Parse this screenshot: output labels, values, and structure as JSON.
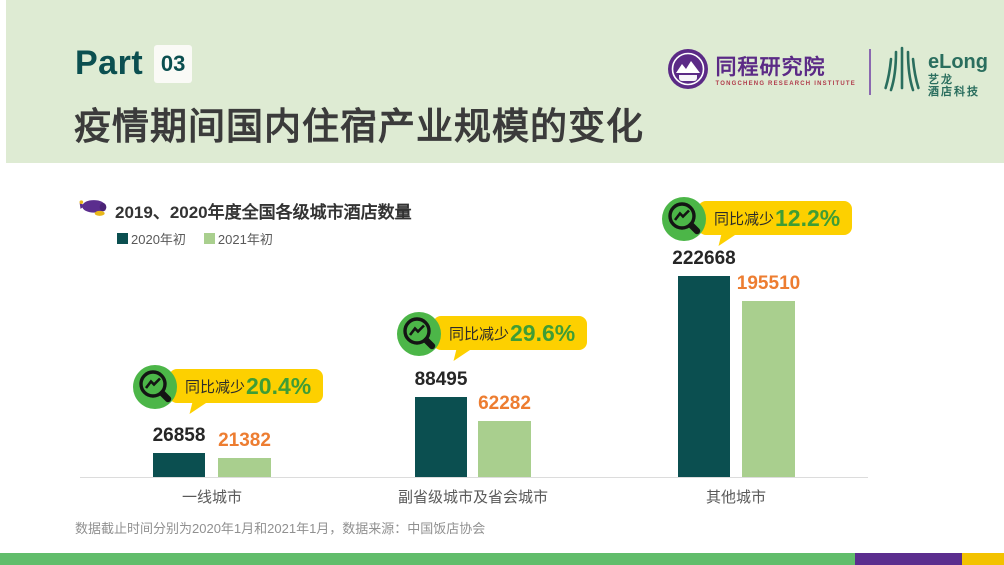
{
  "header": {
    "part_label": "Part",
    "part_number": "03",
    "title": "疫情期间国内住宿产业规模的变化",
    "logos": {
      "tongcheng_name": "同程研究院",
      "tongcheng_subtitle": "TONGCHENG RESEARCH INSTITUTE",
      "elong_name": "eLong",
      "elong_sub1": "艺龙",
      "elong_sub2": "酒店科技"
    }
  },
  "chart_data": {
    "type": "bar",
    "title": "2019、2020年度全国各级城市酒店数量",
    "categories": [
      "一线城市",
      "副省级城市及省会城市",
      "其他城市"
    ],
    "series": [
      {
        "name": "2020年初",
        "color": "#0b4f50",
        "label_color": "#262626",
        "values": [
          26858,
          88495,
          222668
        ]
      },
      {
        "name": "2021年初",
        "color": "#a9cf8e",
        "label_color": "#ed7d31",
        "values": [
          21382,
          62282,
          195510
        ]
      }
    ],
    "annotations": [
      {
        "prefix": "同比减少",
        "value": "20.4%"
      },
      {
        "prefix": "同比减少",
        "value": "29.6%"
      },
      {
        "prefix": "同比减少",
        "value": "12.2%"
      }
    ],
    "ylim": [
      0,
      222668
    ],
    "grid": false,
    "legend_position": "top-left",
    "xlabel": "",
    "ylabel": ""
  },
  "footnote": "数据截止时间分别为2020年1月和2021年1月，数据来源：中国饭店协会",
  "colors": {
    "header_bg": "#deebd3",
    "dark_teal": "#0b4f50",
    "light_green": "#a9cf8e",
    "orange": "#ed7d31",
    "badge_yellow": "#fdd000",
    "badge_circle_green": "#4cb648",
    "badge_pct_green": "#3f9d35",
    "stripe_green": "#61bd6b",
    "stripe_purple": "#5b2d8e",
    "stripe_yellow": "#f3c200",
    "tongcheng_purple": "#5b2a86",
    "elong_green": "#2a6e5e"
  }
}
